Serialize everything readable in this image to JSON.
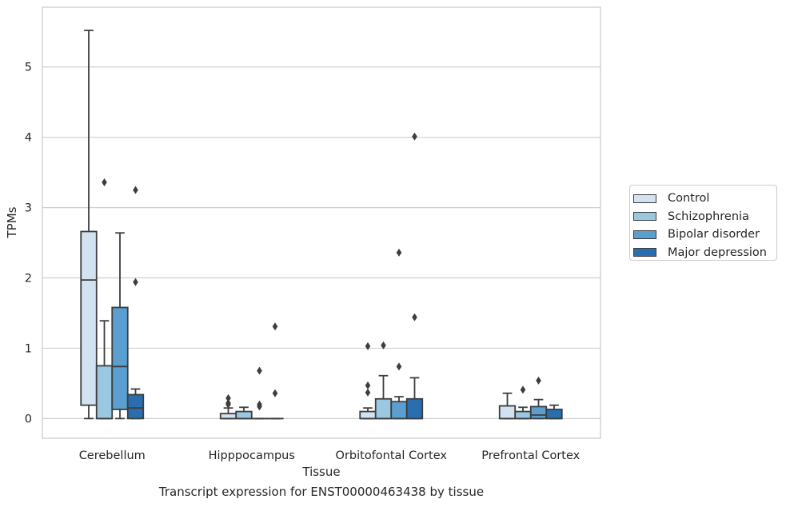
{
  "chart_data": {
    "type": "box",
    "xlabel": "Tissue",
    "ylabel": "TPMs",
    "caption": "Transcript expression for ENST00000463438 by tissue",
    "ylim": [
      -0.28,
      5.85
    ],
    "yticks": [
      "0",
      "1",
      "2",
      "3",
      "4",
      "5"
    ],
    "grid": "horizontal",
    "legend_position": "right",
    "categories": [
      "Cerebellum",
      "Hipppocampus",
      "Orbitofontal Cortex",
      "Prefrontal Cortex"
    ],
    "series": [
      {
        "name": "Control",
        "color": "#d2e2f1",
        "boxes": [
          {
            "whislo": 0.0,
            "q1": 0.19,
            "med": 1.97,
            "q3": 2.66,
            "whishi": 5.52,
            "fliers": []
          },
          {
            "whislo": 0.0,
            "q1": 0.0,
            "med": 0.0,
            "q3": 0.07,
            "whishi": 0.15,
            "fliers": [
              0.2,
              0.22,
              0.29
            ]
          },
          {
            "whislo": 0.0,
            "q1": 0.0,
            "med": 0.0,
            "q3": 0.1,
            "whishi": 0.15,
            "fliers": [
              0.37,
              0.47,
              1.03
            ]
          },
          {
            "whislo": 0.0,
            "q1": 0.0,
            "med": 0.0,
            "q3": 0.18,
            "whishi": 0.36,
            "fliers": []
          }
        ]
      },
      {
        "name": "Schizophrenia",
        "color": "#9ac8e0",
        "boxes": [
          {
            "whislo": 0.0,
            "q1": 0.0,
            "med": 0.0,
            "q3": 0.75,
            "whishi": 1.39,
            "fliers": [
              3.36
            ]
          },
          {
            "whislo": 0.0,
            "q1": 0.0,
            "med": 0.0,
            "q3": 0.1,
            "whishi": 0.16,
            "fliers": []
          },
          {
            "whislo": 0.0,
            "q1": 0.0,
            "med": 0.0,
            "q3": 0.28,
            "whishi": 0.61,
            "fliers": [
              1.04
            ]
          },
          {
            "whislo": 0.0,
            "q1": 0.0,
            "med": 0.0,
            "q3": 0.1,
            "whishi": 0.16,
            "fliers": [
              0.41
            ]
          }
        ]
      },
      {
        "name": "Bipolar disorder",
        "color": "#5a9fcf",
        "boxes": [
          {
            "whislo": 0.0,
            "q1": 0.13,
            "med": 0.74,
            "q3": 1.58,
            "whishi": 2.64,
            "fliers": []
          },
          {
            "whislo": 0.0,
            "q1": 0.0,
            "med": 0.0,
            "q3": 0.0,
            "whishi": 0.0,
            "fliers": [
              0.17,
              0.2,
              0.68
            ]
          },
          {
            "whislo": 0.0,
            "q1": 0.0,
            "med": 0.0,
            "q3": 0.24,
            "whishi": 0.31,
            "fliers": [
              0.74,
              2.36
            ]
          },
          {
            "whislo": 0.0,
            "q1": 0.0,
            "med": 0.05,
            "q3": 0.17,
            "whishi": 0.27,
            "fliers": [
              0.54
            ]
          }
        ]
      },
      {
        "name": "Major depression",
        "color": "#2a6eb0",
        "boxes": [
          {
            "whislo": 0.0,
            "q1": 0.0,
            "med": 0.15,
            "q3": 0.34,
            "whishi": 0.42,
            "fliers": [
              1.94,
              3.25
            ]
          },
          {
            "whislo": 0.0,
            "q1": 0.0,
            "med": 0.0,
            "q3": 0.0,
            "whishi": 0.0,
            "fliers": [
              0.36,
              1.31
            ]
          },
          {
            "whislo": 0.0,
            "q1": 0.0,
            "med": 0.0,
            "q3": 0.28,
            "whishi": 0.58,
            "fliers": [
              1.44,
              4.01
            ]
          },
          {
            "whislo": 0.0,
            "q1": 0.0,
            "med": 0.0,
            "q3": 0.13,
            "whishi": 0.19,
            "fliers": []
          }
        ]
      }
    ]
  }
}
